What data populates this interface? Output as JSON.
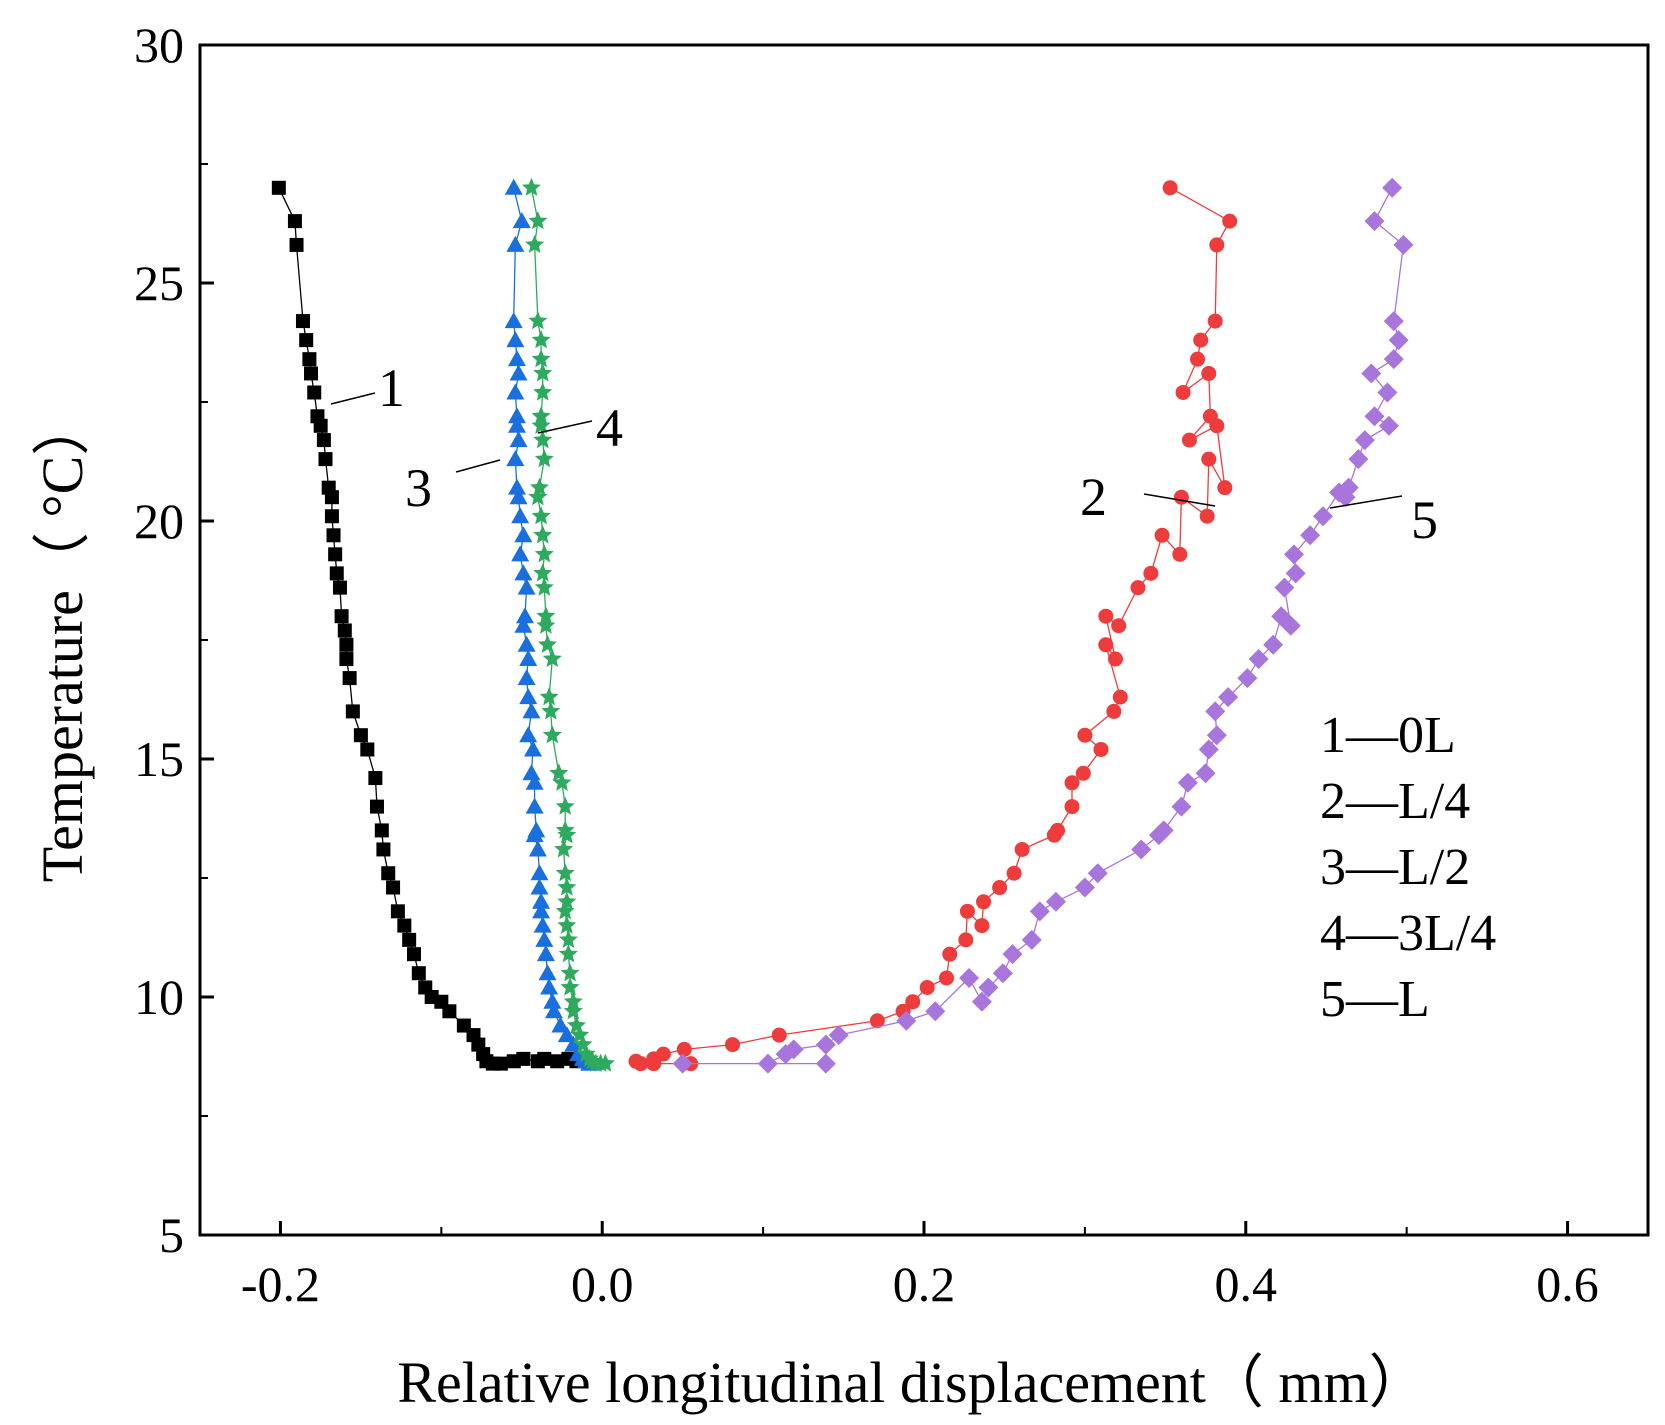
{
  "chart_data": {
    "type": "scatter",
    "xlabel": "Relative longitudinal displacement（ mm）",
    "ylabel": "Temperature（ °C）",
    "xlim": [
      -0.25,
      0.65
    ],
    "ylim": [
      5,
      30
    ],
    "x_ticks": [
      "-0.2",
      "0.0",
      "0.2",
      "0.4",
      "0.6"
    ],
    "y_ticks": [
      "5",
      "10",
      "15",
      "20",
      "25",
      "30"
    ],
    "grid": false,
    "legend": {
      "position": "right",
      "entries": [
        "1—0L",
        "2—L/4",
        "3—L/2",
        "4—3L/4",
        "5—L"
      ]
    },
    "annotations": [
      {
        "label": "1",
        "series": "1"
      },
      {
        "label": "2",
        "series": "2"
      },
      {
        "label": "3",
        "series": "3"
      },
      {
        "label": "4",
        "series": "4"
      },
      {
        "label": "5",
        "series": "5"
      }
    ],
    "series": [
      {
        "name": "1",
        "location": "0L",
        "marker": "square",
        "color": "#000000",
        "x": [
          -0.201,
          -0.191,
          -0.19,
          -0.186,
          -0.184,
          -0.182,
          -0.181,
          -0.179,
          -0.177,
          -0.175,
          -0.173,
          -0.172,
          -0.17,
          -0.168,
          -0.168,
          -0.167,
          -0.166,
          -0.165,
          -0.163,
          -0.162,
          -0.16,
          -0.159,
          -0.159,
          -0.157,
          -0.155,
          -0.15,
          -0.146,
          -0.141,
          -0.14,
          -0.137,
          -0.136,
          -0.133,
          -0.13,
          -0.127,
          -0.123,
          -0.12,
          -0.117,
          -0.114,
          -0.11,
          -0.106,
          -0.1,
          -0.095,
          -0.086,
          -0.08,
          -0.077,
          -0.074,
          -0.072,
          -0.068,
          -0.063,
          -0.055,
          -0.049,
          -0.04,
          -0.036,
          -0.028,
          -0.021,
          -0.016,
          -0.012
        ],
        "y": [
          27.0,
          26.3,
          25.8,
          24.2,
          23.8,
          23.4,
          23.1,
          22.7,
          22.2,
          22.0,
          21.7,
          21.3,
          20.7,
          20.5,
          20.1,
          19.7,
          19.3,
          18.9,
          18.6,
          18.0,
          17.7,
          17.4,
          17.1,
          16.7,
          16.0,
          15.5,
          15.2,
          14.6,
          14.0,
          13.5,
          13.1,
          12.6,
          12.3,
          11.8,
          11.5,
          11.2,
          10.9,
          10.5,
          10.2,
          10.0,
          9.9,
          9.7,
          9.4,
          9.2,
          9.0,
          8.8,
          8.65,
          8.6,
          8.6,
          8.65,
          8.7,
          8.65,
          8.7,
          8.65,
          8.7,
          8.65,
          8.7
        ]
      },
      {
        "name": "2",
        "location": "L/4",
        "marker": "circle",
        "color": "#EE3B3B",
        "x": [
          0.353,
          0.39,
          0.382,
          0.381,
          0.372,
          0.37,
          0.361,
          0.377,
          0.378,
          0.365,
          0.382,
          0.387,
          0.377,
          0.376,
          0.36,
          0.359,
          0.348,
          0.341,
          0.333,
          0.321,
          0.313,
          0.319,
          0.313,
          0.322,
          0.318,
          0.3,
          0.31,
          0.299,
          0.292,
          0.292,
          0.283,
          0.281,
          0.261,
          0.256,
          0.247,
          0.237,
          0.236,
          0.227,
          0.226,
          0.216,
          0.214,
          0.202,
          0.193,
          0.187,
          0.171,
          0.11,
          0.081,
          0.051,
          0.038,
          0.032,
          0.021,
          0.024,
          0.032,
          0.055
        ],
        "y": [
          27.0,
          26.3,
          25.8,
          24.2,
          23.8,
          23.4,
          22.7,
          23.1,
          22.2,
          21.7,
          22.0,
          20.7,
          21.3,
          20.1,
          20.5,
          19.3,
          19.7,
          18.9,
          18.6,
          17.8,
          18.0,
          17.1,
          17.4,
          16.3,
          16.0,
          15.5,
          15.2,
          14.7,
          14.5,
          14.0,
          13.5,
          13.4,
          13.1,
          12.6,
          12.3,
          12.0,
          11.5,
          11.8,
          11.2,
          10.9,
          10.4,
          10.2,
          9.9,
          9.7,
          9.5,
          9.2,
          9.0,
          8.9,
          8.8,
          8.7,
          8.65,
          8.6,
          8.6,
          8.6
        ]
      },
      {
        "name": "3",
        "location": "L/2",
        "marker": "triangle",
        "color": "#1A6FDF",
        "x": [
          -0.055,
          -0.05,
          -0.054,
          -0.055,
          -0.054,
          -0.053,
          -0.052,
          -0.054,
          -0.053,
          -0.053,
          -0.052,
          -0.054,
          -0.053,
          -0.052,
          -0.051,
          -0.049,
          -0.051,
          -0.049,
          -0.047,
          -0.048,
          -0.049,
          -0.047,
          -0.046,
          -0.047,
          -0.046,
          -0.044,
          -0.046,
          -0.043,
          -0.044,
          -0.042,
          -0.042,
          -0.041,
          -0.042,
          -0.04,
          -0.039,
          -0.039,
          -0.038,
          -0.038,
          -0.037,
          -0.036,
          -0.035,
          -0.034,
          -0.033,
          -0.031,
          -0.03,
          -0.026,
          -0.022,
          -0.018,
          -0.015,
          -0.012,
          -0.01,
          -0.008,
          -0.006
        ],
        "y": [
          27.0,
          26.3,
          25.8,
          24.2,
          23.8,
          23.4,
          23.1,
          22.7,
          22.2,
          22.0,
          21.7,
          21.3,
          20.7,
          20.5,
          20.1,
          19.7,
          19.3,
          18.9,
          18.6,
          18.0,
          17.8,
          17.4,
          17.1,
          16.7,
          16.3,
          16.0,
          15.5,
          15.2,
          14.7,
          14.5,
          14.0,
          13.5,
          13.4,
          13.1,
          12.6,
          12.3,
          12.0,
          11.8,
          11.5,
          11.2,
          10.9,
          10.5,
          10.2,
          9.9,
          9.7,
          9.4,
          9.2,
          9.0,
          8.8,
          8.7,
          8.65,
          8.6,
          8.6
        ]
      },
      {
        "name": "4",
        "location": "3L/4",
        "marker": "star",
        "color": "#2EAA5E",
        "x": [
          -0.044,
          -0.04,
          -0.042,
          -0.04,
          -0.038,
          -0.038,
          -0.037,
          -0.037,
          -0.038,
          -0.038,
          -0.037,
          -0.036,
          -0.039,
          -0.04,
          -0.038,
          -0.037,
          -0.036,
          -0.037,
          -0.036,
          -0.035,
          -0.035,
          -0.034,
          -0.031,
          -0.033,
          -0.032,
          -0.031,
          -0.027,
          -0.025,
          -0.023,
          -0.023,
          -0.022,
          -0.024,
          -0.023,
          -0.022,
          -0.022,
          -0.023,
          -0.022,
          -0.021,
          -0.021,
          -0.02,
          -0.02,
          -0.018,
          -0.018,
          -0.016,
          -0.014,
          -0.012,
          -0.01,
          -0.008,
          -0.006,
          -0.004,
          -0.001,
          0.002
        ],
        "y": [
          27.0,
          26.3,
          25.8,
          24.2,
          23.8,
          23.4,
          23.1,
          22.7,
          22.2,
          22.0,
          21.7,
          21.3,
          20.7,
          20.5,
          20.1,
          19.7,
          19.3,
          18.9,
          18.6,
          18.0,
          17.8,
          17.4,
          17.1,
          16.3,
          16.0,
          15.5,
          14.7,
          14.5,
          14.0,
          13.5,
          13.4,
          13.1,
          12.6,
          12.3,
          12.0,
          11.8,
          11.5,
          11.2,
          10.9,
          10.5,
          10.2,
          9.9,
          9.7,
          9.4,
          9.2,
          9.0,
          8.8,
          8.7,
          8.65,
          8.6,
          8.6,
          8.6
        ]
      },
      {
        "name": "5",
        "location": "L",
        "marker": "diamond",
        "color": "#A875DD",
        "x": [
          0.491,
          0.48,
          0.498,
          0.492,
          0.495,
          0.492,
          0.478,
          0.488,
          0.48,
          0.489,
          0.474,
          0.47,
          0.464,
          0.462,
          0.458,
          0.448,
          0.44,
          0.43,
          0.431,
          0.424,
          0.428,
          0.422,
          0.417,
          0.408,
          0.401,
          0.389,
          0.381,
          0.382,
          0.377,
          0.375,
          0.364,
          0.36,
          0.349,
          0.346,
          0.335,
          0.308,
          0.3,
          0.282,
          0.272,
          0.267,
          0.255,
          0.249,
          0.24,
          0.236,
          0.228,
          0.207,
          0.189,
          0.147,
          0.139,
          0.119,
          0.114,
          0.103,
          0.139,
          0.05
        ],
        "y": [
          27.0,
          26.3,
          25.8,
          24.2,
          23.8,
          23.4,
          23.1,
          22.7,
          22.2,
          22.0,
          21.7,
          21.3,
          20.7,
          20.5,
          20.6,
          20.1,
          19.7,
          19.3,
          18.9,
          18.6,
          17.8,
          18.0,
          17.4,
          17.1,
          16.7,
          16.3,
          16.0,
          15.5,
          15.2,
          14.7,
          14.5,
          14.0,
          13.5,
          13.4,
          13.1,
          12.6,
          12.3,
          12.0,
          11.8,
          11.2,
          10.9,
          10.5,
          10.2,
          9.9,
          10.4,
          9.7,
          9.5,
          9.2,
          9.0,
          8.9,
          8.8,
          8.6,
          8.6,
          8.6
        ]
      }
    ]
  }
}
